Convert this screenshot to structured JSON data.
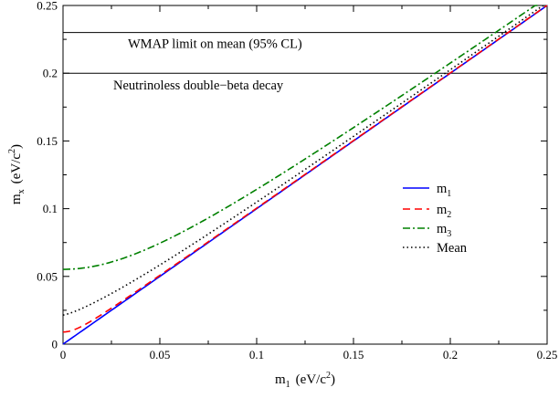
{
  "chart_data": {
    "type": "line",
    "xlabel": {
      "base": "m",
      "sub": "1",
      "unit_pre": "(eV/c",
      "unit_sup": "2",
      "unit_post": ")"
    },
    "ylabel": {
      "base": "m",
      "sub": "x",
      "unit_pre": "(eV/c",
      "unit_sup": "2",
      "unit_post": ")"
    },
    "xlim": [
      0,
      0.25
    ],
    "ylim": [
      0,
      0.25
    ],
    "xticks": [
      0,
      0.05,
      0.1,
      0.15,
      0.2,
      0.25
    ],
    "xtick_labels": [
      "0",
      "0.05",
      "0.1",
      "0.15",
      "0.2",
      "0.25"
    ],
    "yticks": [
      0,
      0.05,
      0.1,
      0.15,
      0.2,
      0.25
    ],
    "ytick_labels": [
      "0",
      "0.05",
      "0.1",
      "0.15",
      "0.2",
      "0.25"
    ],
    "grid": false,
    "hlines": [
      {
        "y": 0.23,
        "label": "WMAP limit on mean (95% CL)"
      },
      {
        "y": 0.2,
        "label": "Neutrinoless double−beta decay"
      }
    ],
    "series": [
      {
        "name": "m",
        "sub": "1",
        "color": "#0000ff",
        "dash": "solid",
        "model": "identity"
      },
      {
        "name": "m",
        "sub": "2",
        "color": "#ff0000",
        "dash": "dashed",
        "model": "sqrt_offset",
        "offset_sq": 8e-05
      },
      {
        "name": "m",
        "sub": "3",
        "color": "#008000",
        "dash": "dashdot",
        "model": "sqrt_offset",
        "offset_sq": 0.00305
      },
      {
        "name": "Mean",
        "sub": "",
        "color": "#000000",
        "dash": "dotted",
        "model": "mean"
      }
    ],
    "legend_position": "center-right"
  }
}
